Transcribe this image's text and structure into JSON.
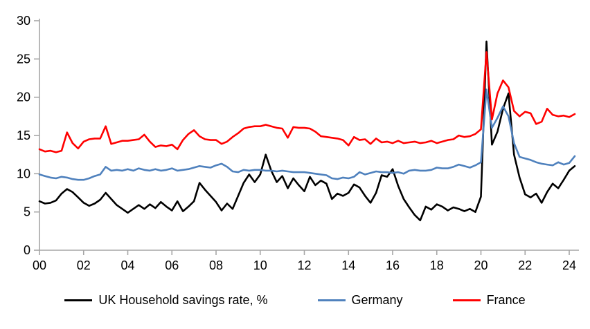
{
  "chart_data": {
    "type": "line",
    "title": "",
    "xlabel": "",
    "ylabel": "",
    "grid": "off",
    "legend_position": "bottom",
    "axis_color": "#A6A6A6",
    "text_color": "#000000",
    "background": "#FFFFFF",
    "x_axis": {
      "start_year": 2000,
      "step_years": 0.25,
      "tick_years": [
        2000,
        2002,
        2004,
        2006,
        2008,
        2010,
        2012,
        2014,
        2016,
        2018,
        2020,
        2022,
        2024
      ],
      "tick_labels": [
        "00",
        "02",
        "04",
        "06",
        "08",
        "10",
        "12",
        "14",
        "16",
        "18",
        "20",
        "22",
        "24"
      ]
    },
    "y_axis": {
      "ticks": [
        0,
        5,
        10,
        15,
        20,
        25,
        30
      ],
      "tick_labels": [
        "0",
        "5",
        "10",
        "15",
        "20",
        "25",
        "30"
      ],
      "range": [
        0,
        30
      ]
    },
    "series": [
      {
        "name": "UK Household savings rate, %",
        "color": "#000000",
        "values": [
          6.4,
          6.1,
          6.2,
          6.5,
          7.4,
          8.0,
          7.6,
          6.9,
          6.2,
          5.8,
          6.1,
          6.6,
          7.5,
          6.7,
          5.9,
          5.4,
          4.9,
          5.4,
          5.9,
          5.4,
          6.0,
          5.5,
          6.3,
          5.7,
          5.2,
          6.4,
          5.1,
          5.7,
          6.4,
          8.8,
          7.9,
          7.1,
          6.3,
          5.2,
          6.1,
          5.4,
          7.1,
          8.8,
          9.9,
          8.9,
          9.9,
          12.5,
          10.4,
          8.9,
          9.7,
          8.1,
          9.4,
          8.5,
          7.7,
          9.6,
          8.5,
          9.1,
          8.7,
          6.7,
          7.4,
          7.1,
          7.5,
          8.6,
          8.2,
          7.1,
          6.2,
          7.5,
          9.8,
          9.6,
          10.6,
          8.4,
          6.7,
          5.6,
          4.6,
          3.9,
          5.7,
          5.3,
          6.0,
          5.7,
          5.2,
          5.6,
          5.4,
          5.1,
          5.4,
          5.0,
          7.0,
          27.3,
          13.8,
          15.5,
          18.5,
          20.5,
          12.5,
          9.5,
          7.3,
          6.9,
          7.4,
          6.2,
          7.6,
          8.7,
          8.1,
          9.2,
          10.4,
          11.0
        ]
      },
      {
        "name": "Germany",
        "color": "#4F81BD",
        "values": [
          9.9,
          9.7,
          9.5,
          9.4,
          9.6,
          9.5,
          9.3,
          9.2,
          9.2,
          9.4,
          9.7,
          9.9,
          10.9,
          10.4,
          10.5,
          10.4,
          10.6,
          10.4,
          10.7,
          10.5,
          10.4,
          10.6,
          10.4,
          10.5,
          10.7,
          10.4,
          10.5,
          10.6,
          10.8,
          11.0,
          10.9,
          10.8,
          11.1,
          11.3,
          10.9,
          10.3,
          10.2,
          10.5,
          10.4,
          10.5,
          10.5,
          10.4,
          10.4,
          10.3,
          10.4,
          10.3,
          10.2,
          10.2,
          10.2,
          10.1,
          10.0,
          9.9,
          9.8,
          9.4,
          9.3,
          9.5,
          9.4,
          9.6,
          10.2,
          9.9,
          10.1,
          10.3,
          10.2,
          10.2,
          10.1,
          10.2,
          10.0,
          10.4,
          10.5,
          10.4,
          10.4,
          10.5,
          10.8,
          10.7,
          10.7,
          10.9,
          11.2,
          11.0,
          10.8,
          11.1,
          11.5,
          21.0,
          16.0,
          17.3,
          18.8,
          17.5,
          14.0,
          12.2,
          12.0,
          11.8,
          11.5,
          11.3,
          11.2,
          11.1,
          11.5,
          11.2,
          11.4,
          12.3
        ]
      },
      {
        "name": "France",
        "color": "#FF0000",
        "values": [
          13.2,
          12.9,
          13.0,
          12.8,
          13.0,
          15.4,
          14.0,
          13.3,
          14.2,
          14.5,
          14.6,
          14.6,
          16.2,
          13.9,
          14.1,
          14.3,
          14.3,
          14.4,
          14.5,
          15.1,
          14.2,
          13.5,
          13.7,
          13.6,
          13.8,
          13.2,
          14.4,
          15.2,
          15.7,
          14.9,
          14.5,
          14.4,
          14.4,
          13.9,
          14.2,
          14.8,
          15.3,
          15.9,
          16.1,
          16.2,
          16.2,
          16.4,
          16.2,
          16.0,
          15.9,
          14.7,
          16.1,
          16.0,
          16.0,
          15.9,
          15.5,
          14.9,
          14.8,
          14.7,
          14.6,
          14.4,
          13.7,
          14.8,
          14.4,
          14.5,
          13.9,
          14.6,
          14.1,
          14.2,
          14.0,
          14.3,
          14.0,
          14.1,
          14.2,
          14.0,
          14.1,
          14.3,
          14.0,
          14.2,
          14.4,
          14.5,
          15.0,
          14.8,
          14.9,
          15.2,
          15.8,
          25.9,
          17.1,
          20.5,
          22.2,
          21.3,
          18.2,
          17.5,
          18.1,
          17.9,
          16.5,
          16.8,
          18.5,
          17.7,
          17.5,
          17.6,
          17.4,
          17.8
        ]
      }
    ]
  }
}
